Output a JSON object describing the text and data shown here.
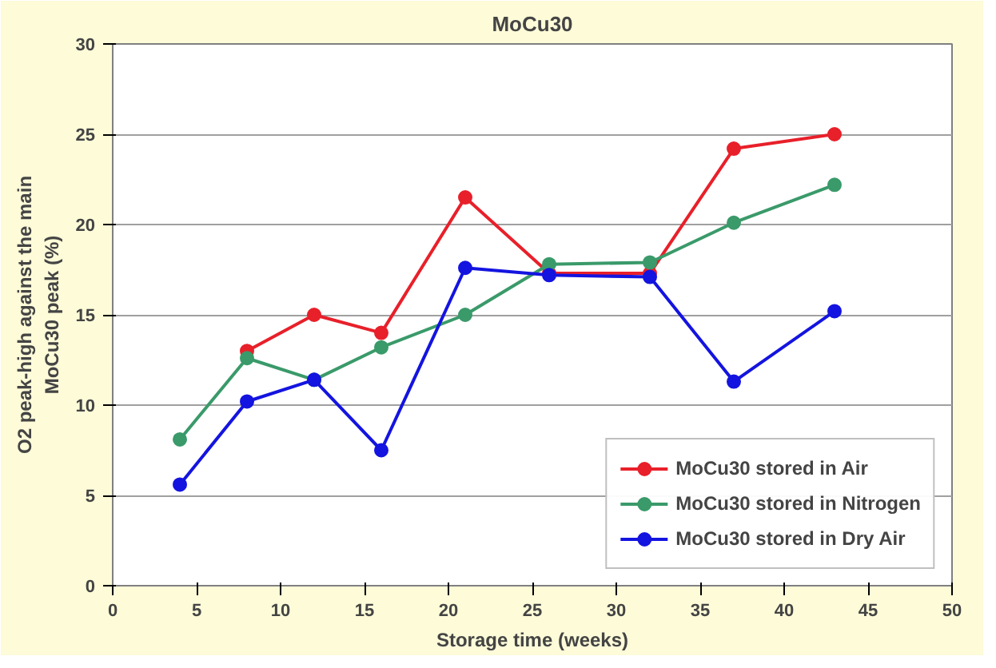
{
  "chart_data": {
    "type": "line",
    "title": "MoCu30",
    "xlabel": "Storage time (weeks)",
    "ylabel": "O2 peak-high against the main MoCu30 peak (%)",
    "x": [
      4,
      8,
      12,
      16,
      21,
      26,
      32,
      37,
      43
    ],
    "series": [
      {
        "name": "MoCu30 stored in Air",
        "color": "#e8202a",
        "values": [
          null,
          13,
          15,
          14,
          21.5,
          17.3,
          17.3,
          24.2,
          25
        ]
      },
      {
        "name": "MoCu30 stored in Nitrogen",
        "color": "#3a9a6a",
        "values": [
          8.1,
          12.6,
          11.4,
          13.2,
          15,
          17.8,
          17.9,
          20.1,
          22.2
        ]
      },
      {
        "name": "MoCu30 stored in Dry Air",
        "color": "#1414e0",
        "values": [
          5.6,
          10.2,
          11.4,
          7.5,
          17.6,
          17.2,
          17.1,
          11.3,
          15.2
        ]
      }
    ],
    "xlim": [
      0,
      50
    ],
    "xticks": [
      0,
      5,
      10,
      15,
      20,
      25,
      30,
      35,
      40,
      45,
      50
    ],
    "ylim": [
      0,
      30
    ],
    "yticks": [
      0,
      5,
      10,
      15,
      20,
      25,
      30
    ],
    "grid": "y",
    "legend": "bottom right",
    "marker": "circle",
    "line_style": "solid"
  }
}
